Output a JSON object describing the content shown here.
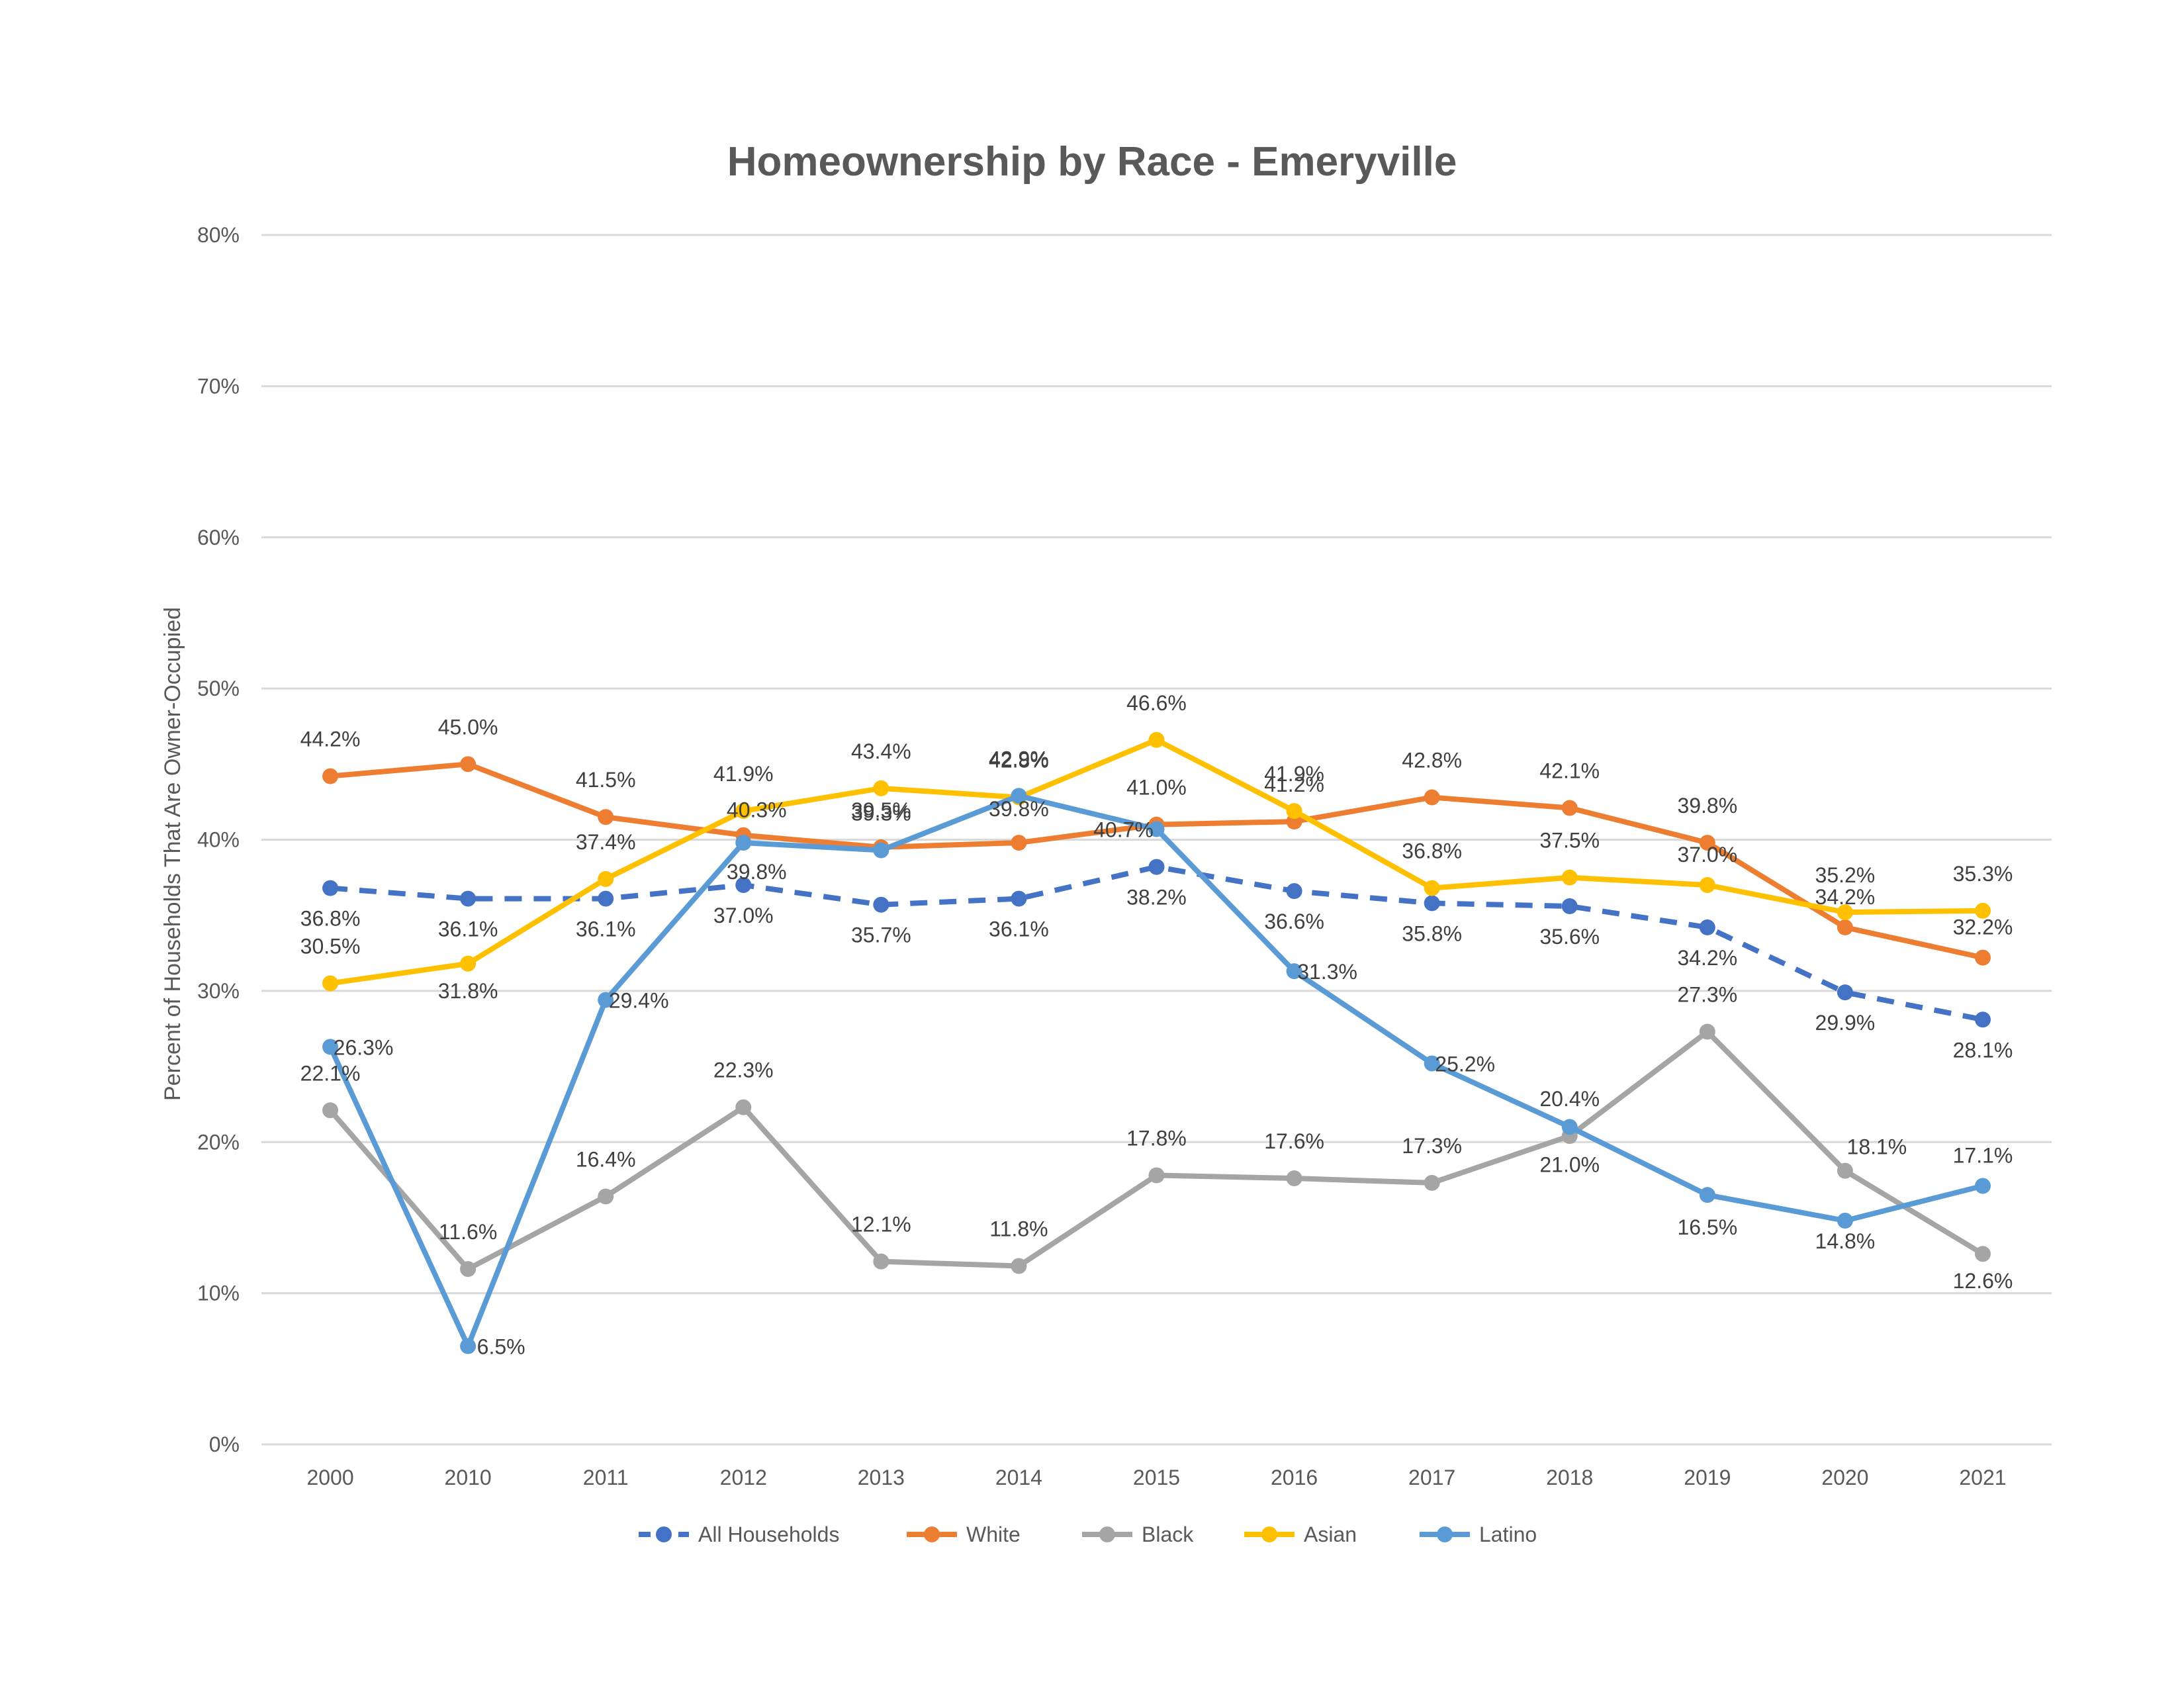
{
  "chart_data": {
    "type": "line",
    "title": "Homeownership by Race - Emeryville",
    "ylabel": "Percent of Households That Are Owner-Occupied",
    "xlabel": "",
    "categories": [
      "2000",
      "2010",
      "2011",
      "2012",
      "2013",
      "2014",
      "2015",
      "2016",
      "2017",
      "2018",
      "2019",
      "2020",
      "2021"
    ],
    "ylim": [
      0,
      80
    ],
    "yticks": [
      "0%",
      "10%",
      "20%",
      "30%",
      "40%",
      "50%",
      "60%",
      "70%",
      "80%"
    ],
    "grid": true,
    "legend_position": "bottom",
    "series": [
      {
        "name": "All Households",
        "color": "#4472C4",
        "dashed": true,
        "values": [
          36.8,
          36.1,
          36.1,
          37.0,
          35.7,
          36.1,
          38.2,
          36.6,
          35.8,
          35.6,
          34.2,
          29.9,
          28.1
        ],
        "labels": [
          "36.8%",
          "36.1%",
          "36.1%",
          "37.0%",
          "35.7%",
          "36.1%",
          "38.2%",
          "36.6%",
          "35.8%",
          "35.6%",
          "34.2%",
          "29.9%",
          "28.1%"
        ]
      },
      {
        "name": "White",
        "color": "#ED7D31",
        "dashed": false,
        "values": [
          44.2,
          45.0,
          41.5,
          40.3,
          39.5,
          39.8,
          41.0,
          41.2,
          42.8,
          42.1,
          39.8,
          34.2,
          32.2
        ],
        "labels": [
          "44.2%",
          "45.0%",
          "41.5%",
          "40.3%",
          "39.5%",
          "39.8%",
          "41.0%",
          "41.2%",
          "42.8%",
          "42.1%",
          "39.8%",
          "34.2%",
          "32.2%"
        ]
      },
      {
        "name": "Black",
        "color": "#A5A5A5",
        "dashed": false,
        "values": [
          22.1,
          11.6,
          16.4,
          22.3,
          12.1,
          11.8,
          17.8,
          17.6,
          17.3,
          20.4,
          27.3,
          18.1,
          12.6
        ],
        "labels": [
          "22.1%",
          "11.6%",
          "16.4%",
          "22.3%",
          "12.1%",
          "11.8%",
          "17.8%",
          "17.6%",
          "17.3%",
          "20.4%",
          "27.3%",
          "18.1%",
          "12.6%"
        ]
      },
      {
        "name": "Asian",
        "color": "#FFC000",
        "dashed": false,
        "values": [
          30.5,
          31.8,
          37.4,
          41.9,
          43.4,
          42.8,
          46.6,
          41.9,
          36.8,
          37.5,
          37.0,
          35.2,
          35.3
        ],
        "labels": [
          "30.5%",
          "31.8%",
          "37.4%",
          "41.9%",
          "43.4%",
          "42.8%",
          "46.6%",
          "41.9%",
          "36.8%",
          "37.5%",
          "37.0%",
          "35.2%",
          "35.3%"
        ]
      },
      {
        "name": "Latino",
        "color": "#5B9BD5",
        "dashed": false,
        "values": [
          26.3,
          6.5,
          29.4,
          39.8,
          39.3,
          42.9,
          40.7,
          31.3,
          25.2,
          21.0,
          16.5,
          14.8,
          17.1
        ],
        "labels": [
          "26.3%",
          "6.5%",
          "29.4%",
          "39.8%",
          "39.3%",
          "42.9%",
          "40.7%",
          "31.3%",
          "25.2%",
          "21.0%",
          "16.5%",
          "14.8%",
          "17.1%"
        ]
      }
    ]
  }
}
